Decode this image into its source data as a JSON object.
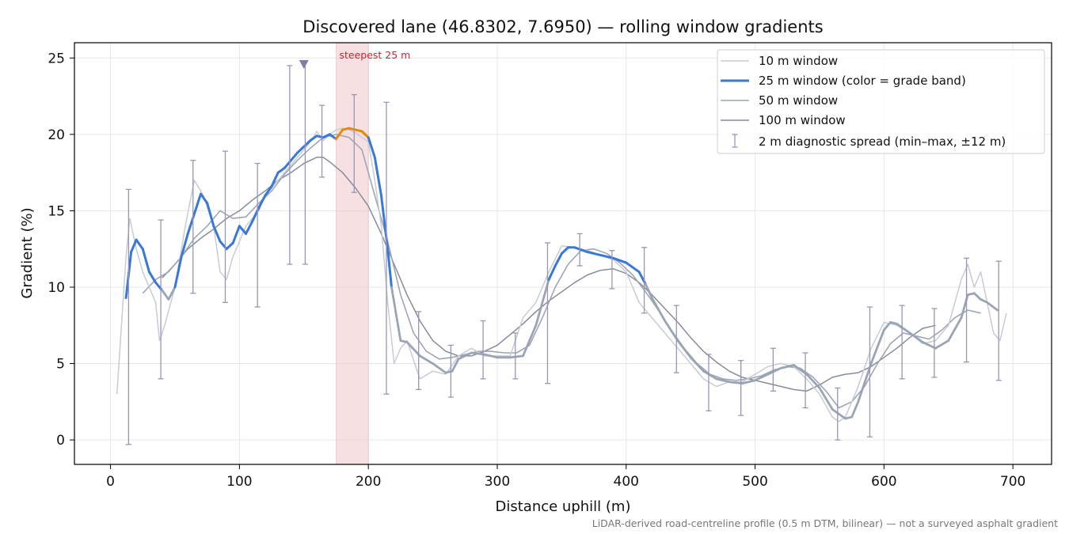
{
  "figure": {
    "footnote": "LiDAR-derived road-centreline profile (0.5 m DTM, bilinear) — not a surveyed asphalt gradient"
  },
  "colors": {
    "w10": "#c7cbd6",
    "w25": "#3a78d6",
    "w25_steep": "#e08a0e",
    "w25_low": "#9aa5b4",
    "w50": "#9ea6b4",
    "w100": "#858c99",
    "diag": "#9a95b5",
    "steep_band": "#f0c8cc",
    "steep_text": "#cc2233",
    "marker": "#857aa8"
  },
  "chart_data": {
    "type": "line",
    "title": "Discovered lane (46.8302, 7.6950) — rolling window gradients",
    "xlabel": "Distance uphill (m)",
    "ylabel": "Gradient (%)",
    "xlim": [
      -28,
      730
    ],
    "ylim": [
      -1.6,
      26
    ],
    "xticks": [
      0,
      100,
      200,
      300,
      400,
      500,
      600,
      700
    ],
    "yticks": [
      0,
      5,
      10,
      15,
      20,
      25
    ],
    "grid": true,
    "legend_position": "top-right",
    "legend": [
      "10 m window",
      "25 m window (color = grade band)",
      "50 m window",
      "100 m window",
      "2 m diagnostic spread (min–max, ±12 m)"
    ],
    "steepest_annotation": {
      "label": "steepest 25 m",
      "x_range": [
        175,
        200
      ],
      "marker_x": 150,
      "marker_y": 24.6
    },
    "series": [
      {
        "key": "w10",
        "x": [
          5,
          12,
          15,
          20,
          25,
          30,
          35,
          38,
          42,
          50,
          58,
          65,
          72,
          80,
          85,
          90,
          95,
          100,
          105,
          110,
          115,
          120,
          125,
          130,
          135,
          140,
          145,
          150,
          155,
          160,
          165,
          170,
          175,
          180,
          185,
          190,
          195,
          200,
          205,
          210,
          215,
          220,
          225,
          230,
          240,
          250,
          260,
          270,
          280,
          290,
          300,
          310,
          320,
          330,
          340,
          350,
          360,
          370,
          380,
          390,
          400,
          410,
          420,
          430,
          440,
          450,
          460,
          470,
          480,
          490,
          500,
          510,
          520,
          530,
          540,
          550,
          560,
          565,
          570,
          580,
          590,
          600,
          610,
          620,
          630,
          640,
          650,
          660,
          665,
          670,
          675,
          680,
          685,
          690,
          695
        ],
        "values": [
          3,
          12,
          14.5,
          12.5,
          11,
          10,
          9,
          6.5,
          7.5,
          10,
          14,
          17,
          16,
          14,
          11,
          10.5,
          12,
          13,
          14,
          14.5,
          15,
          16,
          16.5,
          17,
          17.5,
          18,
          18.5,
          19,
          19.5,
          20.2,
          19.6,
          20,
          20.3,
          20.4,
          20.3,
          20.1,
          19.8,
          19.5,
          17,
          14,
          9,
          5,
          6,
          6.5,
          4,
          4.5,
          4.3,
          5.5,
          6,
          5.5,
          5.5,
          5.5,
          8,
          9,
          11,
          12.7,
          12.6,
          12.4,
          12.1,
          11.8,
          11,
          9,
          8,
          7,
          6,
          5,
          4,
          3.5,
          3.8,
          3.8,
          4.3,
          4.8,
          5,
          4.8,
          4,
          3,
          1.5,
          1.2,
          1.5,
          3.5,
          6,
          7.7,
          7.5,
          7,
          6.3,
          6.5,
          7.5,
          10.5,
          11.5,
          10,
          11,
          9,
          7,
          6.5,
          8.3
        ]
      },
      {
        "key": "w25",
        "x": [
          12,
          16,
          20,
          25,
          30,
          35,
          40,
          45,
          50,
          55,
          60,
          65,
          70,
          75,
          80,
          85,
          90,
          95,
          100,
          105,
          110,
          115,
          120,
          125,
          130,
          135,
          140,
          145,
          150,
          155,
          160,
          165,
          170,
          175,
          180,
          185,
          190,
          195,
          200,
          205,
          210,
          215,
          218,
          225,
          230,
          240,
          250,
          260,
          265,
          270,
          280,
          290,
          300,
          310,
          320,
          330,
          340,
          345,
          350,
          355,
          360,
          370,
          380,
          390,
          400,
          410,
          415,
          420,
          430,
          440,
          450,
          460,
          470,
          480,
          490,
          500,
          510,
          520,
          530,
          540,
          550,
          560,
          570,
          575,
          580,
          590,
          600,
          605,
          610,
          620,
          630,
          640,
          650,
          660,
          665,
          670,
          675,
          680,
          688
        ],
        "values": [
          9.3,
          12.3,
          13.1,
          12.5,
          11,
          10.3,
          9.8,
          9.2,
          10,
          12,
          13.5,
          14.8,
          16.1,
          15.5,
          14,
          13,
          12.5,
          12.9,
          14,
          13.5,
          14.3,
          15.2,
          16,
          16.6,
          17.5,
          17.8,
          18.3,
          18.8,
          19.2,
          19.6,
          19.9,
          19.8,
          20,
          19.7,
          20.3,
          20.4,
          20.3,
          20.2,
          19.8,
          18.5,
          16,
          12.5,
          10,
          6.5,
          6.4,
          5.5,
          5,
          4.4,
          4.5,
          5.3,
          5.7,
          5.6,
          5.4,
          5.4,
          5.5,
          7.5,
          10.5,
          11.4,
          12.2,
          12.6,
          12.6,
          12.3,
          12.1,
          11.9,
          11.6,
          11,
          10.2,
          9.3,
          7.8,
          6.5,
          5.4,
          4.5,
          4,
          3.8,
          3.7,
          3.9,
          4.3,
          4.7,
          4.9,
          4.3,
          3.4,
          2,
          1.4,
          1.5,
          2.5,
          5,
          7.2,
          7.7,
          7.6,
          7,
          6.4,
          6,
          6.5,
          8,
          9.5,
          9.6,
          9.2,
          9,
          8.5
        ]
      },
      {
        "key": "w50",
        "x": [
          25,
          35,
          45,
          55,
          65,
          75,
          85,
          95,
          105,
          115,
          125,
          135,
          145,
          155,
          165,
          175,
          185,
          195,
          205,
          215,
          225,
          235,
          245,
          255,
          265,
          275,
          285,
          295,
          305,
          315,
          325,
          335,
          345,
          355,
          365,
          375,
          385,
          395,
          405,
          415,
          425,
          435,
          445,
          455,
          465,
          475,
          485,
          495,
          505,
          515,
          525,
          535,
          545,
          555,
          565,
          575,
          585,
          595,
          605,
          615,
          625,
          635,
          645,
          655,
          665,
          675
        ],
        "values": [
          9.6,
          10.5,
          11,
          12,
          13.2,
          14,
          15,
          14.5,
          14.6,
          15.5,
          16.3,
          17.4,
          18.3,
          19.1,
          19.8,
          20,
          19.8,
          19,
          16,
          13,
          9.5,
          7,
          5.8,
          5.3,
          5.4,
          5.6,
          5.8,
          5.8,
          5.7,
          5.7,
          6.2,
          8,
          10,
          11.5,
          12.4,
          12.5,
          12.2,
          11.6,
          10.8,
          9.7,
          8.5,
          7.2,
          6,
          5,
          4.3,
          4,
          3.9,
          4,
          4.2,
          4.6,
          4.8,
          4.7,
          4.1,
          3.2,
          2.1,
          2.5,
          3.5,
          5,
          6.3,
          7,
          6.8,
          6.6,
          7.2,
          8,
          8.5,
          8.3
        ]
      },
      {
        "key": "w100",
        "x": [
          40,
          50,
          60,
          70,
          80,
          90,
          100,
          110,
          120,
          130,
          140,
          150,
          160,
          165,
          170,
          180,
          190,
          200,
          210,
          220,
          230,
          240,
          250,
          260,
          270,
          280,
          290,
          300,
          310,
          320,
          330,
          340,
          350,
          360,
          370,
          380,
          390,
          400,
          410,
          420,
          430,
          440,
          450,
          460,
          470,
          480,
          490,
          500,
          510,
          520,
          530,
          540,
          550,
          560,
          570,
          580,
          590,
          600,
          610,
          620,
          630,
          640
        ],
        "values": [
          10.6,
          11.5,
          12.5,
          13.2,
          13.8,
          14.5,
          15,
          15.7,
          16.3,
          17,
          17.5,
          18.1,
          18.5,
          18.5,
          18.2,
          17.5,
          16.5,
          15.3,
          13.5,
          11.5,
          9.5,
          7.8,
          6.5,
          5.8,
          5.5,
          5.5,
          5.8,
          6.2,
          6.9,
          7.6,
          8.4,
          9.1,
          9.7,
          10.3,
          10.8,
          11.1,
          11.2,
          10.9,
          10.3,
          9.5,
          8.6,
          7.7,
          6.7,
          5.8,
          5.1,
          4.5,
          4.1,
          3.9,
          3.7,
          3.5,
          3.3,
          3.2,
          3.6,
          4.1,
          4.3,
          4.4,
          4.8,
          5.4,
          6,
          6.7,
          7.3,
          7.5
        ]
      }
    ],
    "spread_bars": [
      {
        "x": 14,
        "min": -0.3,
        "max": 16.4
      },
      {
        "x": 39,
        "min": 4,
        "max": 14.4
      },
      {
        "x": 64,
        "min": 9.6,
        "max": 18.3
      },
      {
        "x": 89,
        "min": 9,
        "max": 18.9
      },
      {
        "x": 114,
        "min": 8.7,
        "max": 18.1
      },
      {
        "x": 139,
        "min": 11.5,
        "max": 24.5
      },
      {
        "x": 151,
        "min": 11.5,
        "max": 24.8
      },
      {
        "x": 164,
        "min": 17.2,
        "max": 21.9
      },
      {
        "x": 189,
        "min": 16.2,
        "max": 22.6
      },
      {
        "x": 214,
        "min": 3,
        "max": 22.1
      },
      {
        "x": 239,
        "min": 3.3,
        "max": 8.4
      },
      {
        "x": 264,
        "min": 2.8,
        "max": 6.2
      },
      {
        "x": 289,
        "min": 4,
        "max": 7.8
      },
      {
        "x": 314,
        "min": 4,
        "max": 7
      },
      {
        "x": 339,
        "min": 3.7,
        "max": 12.9
      },
      {
        "x": 364,
        "min": 11.4,
        "max": 13.5
      },
      {
        "x": 389,
        "min": 9.9,
        "max": 12.4
      },
      {
        "x": 414,
        "min": 8.3,
        "max": 12.6
      },
      {
        "x": 439,
        "min": 4.4,
        "max": 8.8
      },
      {
        "x": 464,
        "min": 1.9,
        "max": 5.6
      },
      {
        "x": 489,
        "min": 1.6,
        "max": 5.2
      },
      {
        "x": 514,
        "min": 3.2,
        "max": 6
      },
      {
        "x": 539,
        "min": 2.1,
        "max": 5.7
      },
      {
        "x": 564,
        "min": 0,
        "max": 3.4
      },
      {
        "x": 589,
        "min": 0.2,
        "max": 8.7
      },
      {
        "x": 614,
        "min": 4,
        "max": 8.8
      },
      {
        "x": 639,
        "min": 4.1,
        "max": 8.6
      },
      {
        "x": 664,
        "min": 5.1,
        "max": 11.9
      },
      {
        "x": 689,
        "min": 3.9,
        "max": 11.7
      }
    ]
  }
}
